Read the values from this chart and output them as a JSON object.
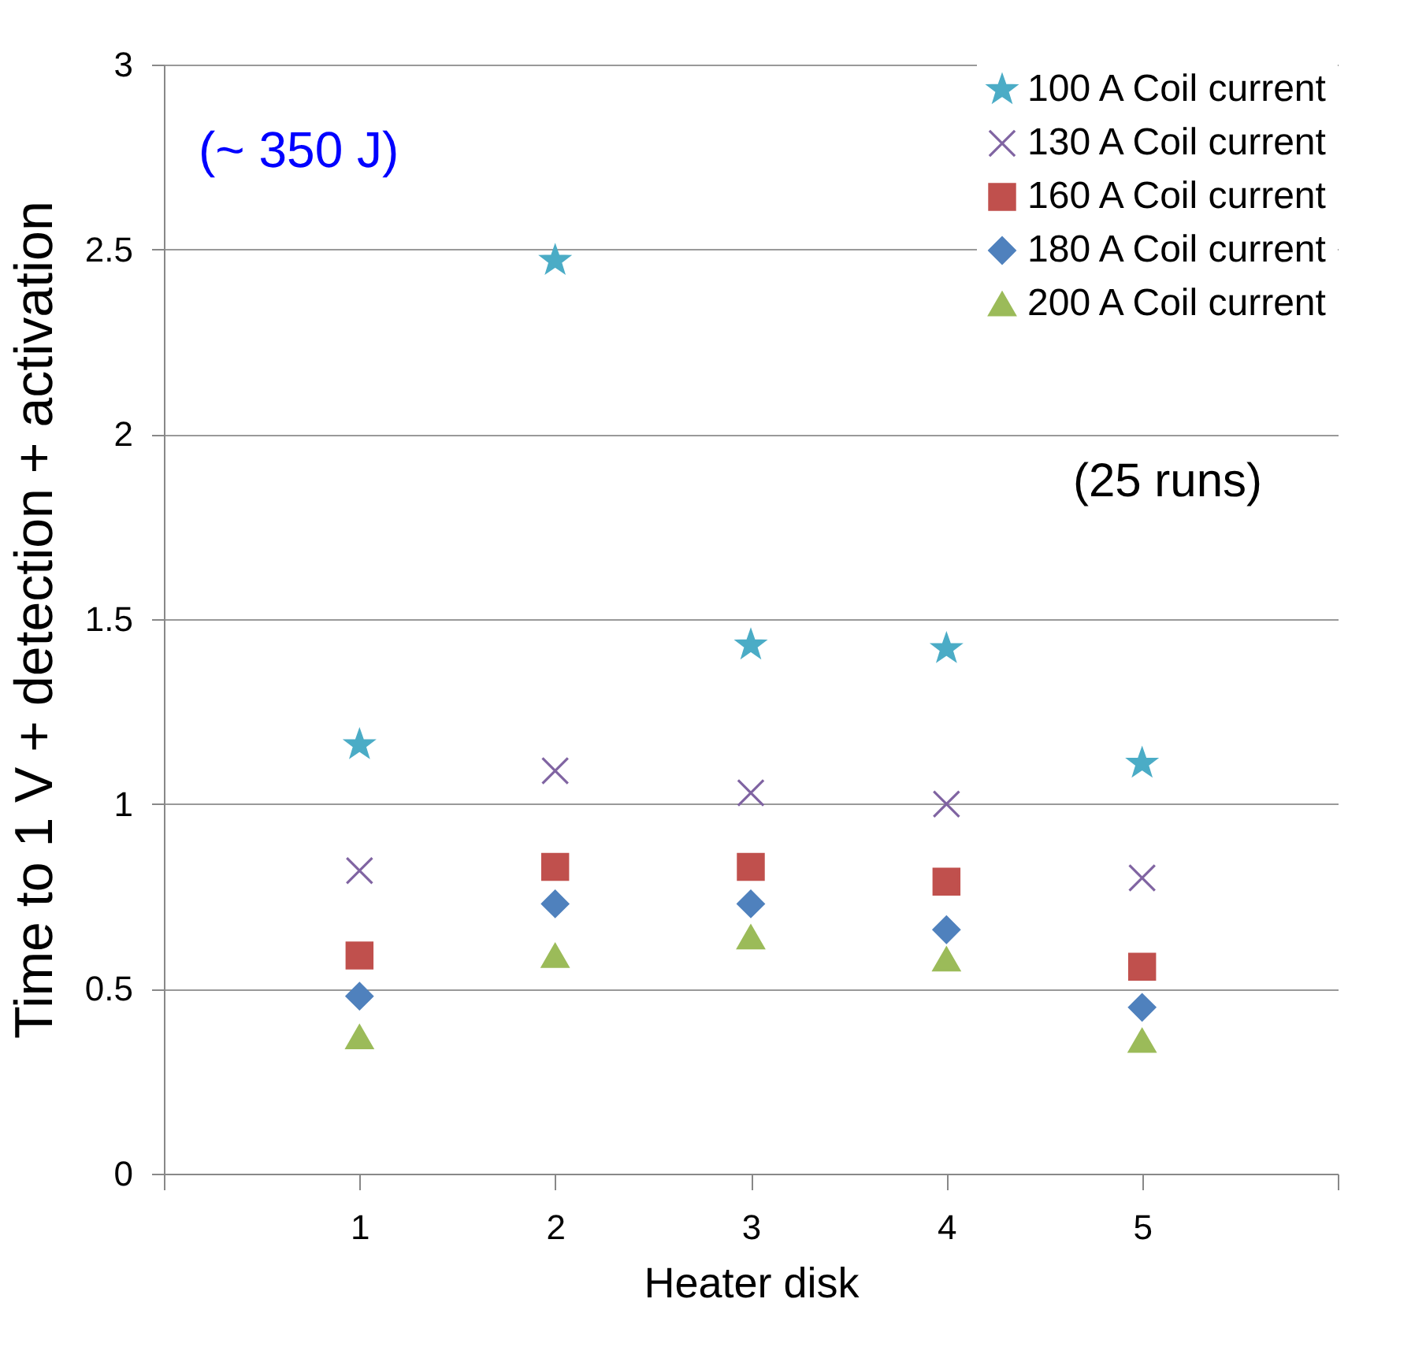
{
  "chart_data": {
    "type": "scatter",
    "xlabel": "Heater disk",
    "ylabel": "Time to 1 V + detection + activation",
    "x": [
      1,
      2,
      3,
      4,
      5
    ],
    "series": [
      {
        "name": "100 A Coil current",
        "color": "#4bacc6",
        "marker": "star",
        "values": [
          1.16,
          2.47,
          1.43,
          1.42,
          1.11
        ]
      },
      {
        "name": "130 A Coil current",
        "color": "#8064a2",
        "marker": "cross",
        "values": [
          0.82,
          1.09,
          1.03,
          1.0,
          0.8
        ]
      },
      {
        "name": "160 A Coil current",
        "color": "#c0504d",
        "marker": "square",
        "values": [
          0.59,
          0.83,
          0.83,
          0.79,
          0.56
        ]
      },
      {
        "name": "180 A Coil current",
        "color": "#4f81bd",
        "marker": "diamond",
        "values": [
          0.48,
          0.73,
          0.73,
          0.66,
          0.45
        ]
      },
      {
        "name": "200 A Coil current",
        "color": "#9bbb59",
        "marker": "triangle",
        "values": [
          0.37,
          0.59,
          0.64,
          0.58,
          0.36
        ]
      }
    ],
    "xlim": [
      0,
      6
    ],
    "xticks": [
      {
        "value": 0,
        "label": null
      },
      1,
      2,
      3,
      4,
      5,
      {
        "value": 6,
        "label": null
      }
    ],
    "ylim": [
      0,
      3
    ],
    "yticks": [
      0,
      0.5,
      1,
      1.5,
      2,
      2.5,
      3
    ],
    "grid": "y",
    "legend": "top right",
    "annotations": [
      "(~ 350 J)",
      "(25 runs)"
    ]
  }
}
